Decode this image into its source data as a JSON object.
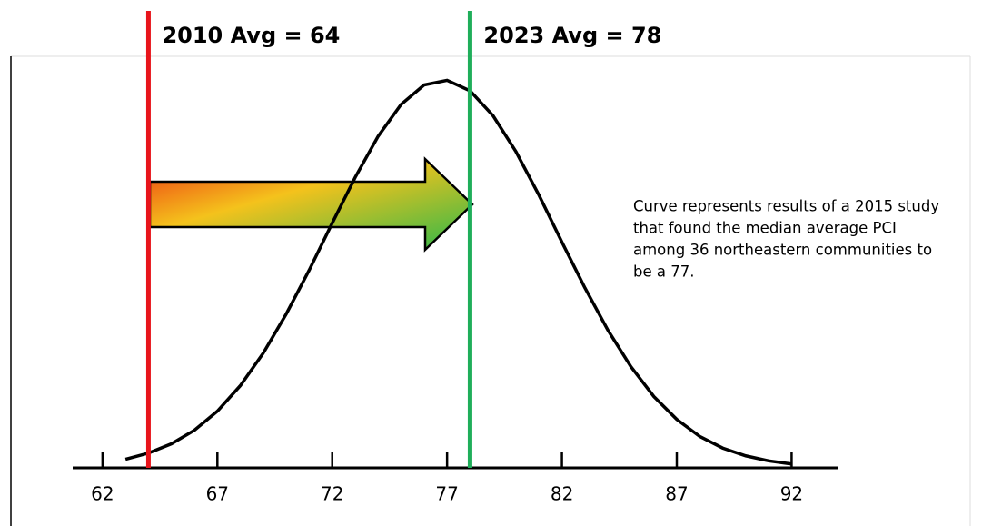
{
  "chart_data": {
    "type": "line",
    "x": [
      63,
      64,
      65,
      66,
      67,
      68,
      69,
      70,
      71,
      72,
      73,
      74,
      75,
      76,
      77,
      78,
      79,
      80,
      81,
      82,
      83,
      84,
      85,
      86,
      87,
      88,
      89,
      90,
      91,
      92
    ],
    "values": [
      2.2,
      3.8,
      6.2,
      9.7,
      14.6,
      21.2,
      29.6,
      39.7,
      51.0,
      63.1,
      74.9,
      85.5,
      93.7,
      98.7,
      99.9,
      97.2,
      90.8,
      81.5,
      70.3,
      58.2,
      46.4,
      35.5,
      26.1,
      18.4,
      12.5,
      8.1,
      5.1,
      3.1,
      1.8,
      1.0
    ],
    "color": "#000000",
    "xlim": [
      60.7,
      94
    ],
    "xticks": [
      62,
      67,
      72,
      77,
      82,
      87,
      92
    ],
    "ylim": [
      0,
      100
    ],
    "markers": [
      {
        "label": "2010 Avg = 64",
        "x": 64,
        "color": "#e8141b"
      },
      {
        "label": "2023 Avg = 78",
        "x": 78,
        "color": "#1fae5a"
      }
    ],
    "note": [
      "Curve represents results of a 2015 study",
      "that found the median average PCI",
      "among 36 northeastern communities to",
      "be a 77."
    ]
  }
}
